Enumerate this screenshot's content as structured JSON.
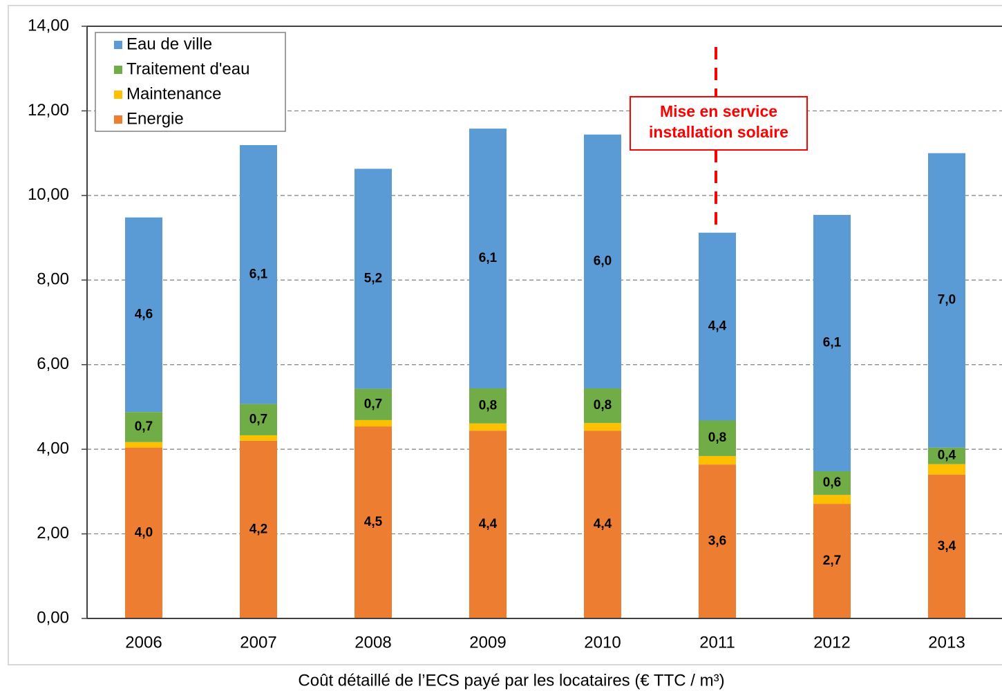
{
  "chart_data": {
    "type": "stacked_bar",
    "caption": "Coût détaillé de l’ECS payé par les locataires (€ TTC / m³)",
    "annotation": [
      "Mise en service",
      "installation solaire"
    ],
    "categories": [
      "2006",
      "2007",
      "2008",
      "2009",
      "2010",
      "2011",
      "2012",
      "2013"
    ],
    "series": [
      {
        "name": "Energie",
        "color": "#ed7d31",
        "values": [
          4.04,
          4.2,
          4.54,
          4.44,
          4.44,
          3.64,
          2.71,
          3.4
        ],
        "value_labels": [
          "4,0",
          "4,2",
          "4,5",
          "4,4",
          "4,4",
          "3,6",
          "2,7",
          "3,4"
        ]
      },
      {
        "name": "Maintenance",
        "color": "#ffc000",
        "values": [
          0.13,
          0.13,
          0.15,
          0.17,
          0.18,
          0.2,
          0.21,
          0.25
        ]
      },
      {
        "name": "Traitement d'eau",
        "color": "#70ad47",
        "values": [
          0.71,
          0.74,
          0.74,
          0.83,
          0.82,
          0.84,
          0.56,
          0.39
        ],
        "value_labels": [
          "0,7",
          "0,7",
          "0,7",
          "0,8",
          "0,8",
          "0,8",
          "0,6",
          "0,4"
        ]
      },
      {
        "name": "Eau de ville",
        "color": "#5b9bd5",
        "values": [
          4.6,
          6.12,
          5.2,
          6.14,
          6.0,
          4.44,
          6.06,
          6.96
        ],
        "value_labels": [
          "4,6",
          "6,1",
          "5,2",
          "6,1",
          "6,0",
          "4,4",
          "6,1",
          "7,0"
        ]
      }
    ],
    "ylim": [
      0,
      14
    ],
    "yticks": [
      {
        "value": 0,
        "label": "0,00"
      },
      {
        "value": 2,
        "label": "2,00"
      },
      {
        "value": 4,
        "label": "4,00"
      },
      {
        "value": 6,
        "label": "6,00"
      },
      {
        "value": 8,
        "label": "8,00"
      },
      {
        "value": 10,
        "label": "10,00"
      },
      {
        "value": 12,
        "label": "12,00"
      },
      {
        "value": 14,
        "label": "14,00"
      }
    ],
    "grid": true
  }
}
